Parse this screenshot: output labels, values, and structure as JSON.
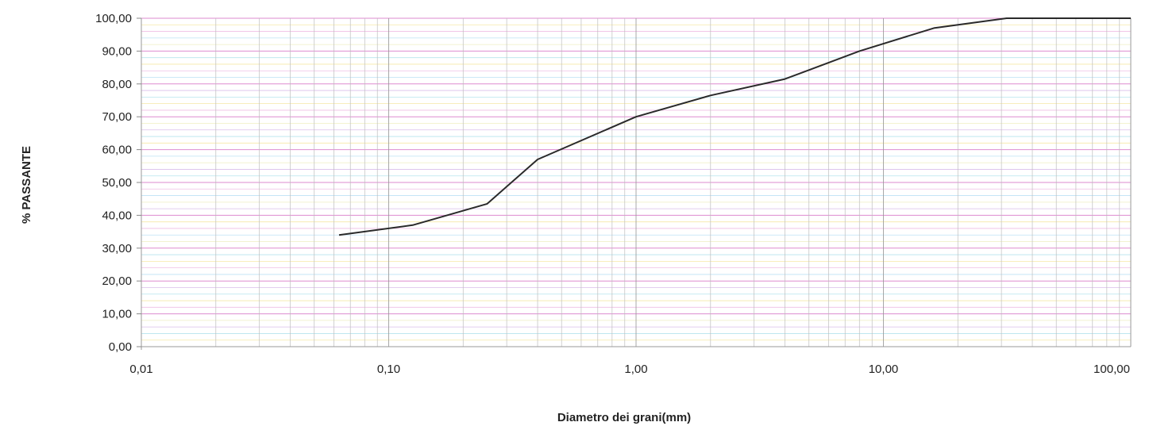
{
  "chart_data": {
    "type": "line",
    "title": "",
    "xlabel": "Diametro dei grani(mm)",
    "ylabel": "% PASSANTE",
    "x_scale": "log",
    "xlim": [
      0.01,
      100
    ],
    "ylim": [
      0,
      100
    ],
    "x_ticks": [
      0.01,
      0.1,
      1,
      10,
      100
    ],
    "x_tick_labels": [
      "0,01",
      "0,10",
      "1,00",
      "10,00",
      "100,00"
    ],
    "y_ticks": [
      0,
      10,
      20,
      30,
      40,
      50,
      60,
      70,
      80,
      90,
      100
    ],
    "y_tick_labels": [
      "0,00",
      "10,00",
      "20,00",
      "30,00",
      "40,00",
      "50,00",
      "60,00",
      "70,00",
      "80,00",
      "90,00",
      "100,00"
    ],
    "grid": true,
    "legend": "none",
    "series": [
      {
        "color": "#2a2a2a",
        "x": [
          0.063,
          0.125,
          0.25,
          0.4,
          1,
          2,
          4,
          8,
          16,
          31.5,
          63,
          100
        ],
        "y": [
          34,
          37,
          43.5,
          57,
          70,
          76.5,
          81.5,
          90,
          97,
          100,
          100,
          100
        ]
      }
    ]
  }
}
